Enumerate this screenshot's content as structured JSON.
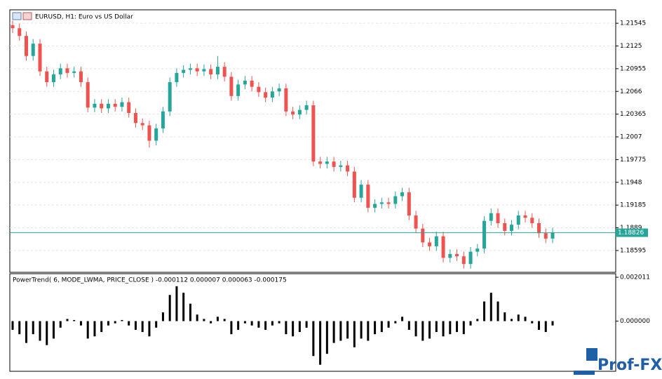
{
  "chart_data": [
    {
      "type": "candlestick",
      "title": "EURUSD, H1:  Euro vs US Dollar",
      "ylim": [
        1.18312,
        1.21719
      ],
      "yticks": [
        1.21545,
        1.2125,
        1.20955,
        1.2066,
        1.20365,
        1.2007,
        1.19775,
        1.1948,
        1.19185,
        1.1889,
        1.18595
      ],
      "grid": true,
      "up_color": "#26a69a",
      "down_color": "#ef5350",
      "price_line": 1.18826,
      "price_line_color": "#26a69a",
      "open": [
        1.2152,
        1.2148,
        1.2138,
        1.2112,
        1.2128,
        1.2092,
        1.2078,
        1.2088,
        1.2096,
        1.209,
        1.2092,
        1.2078,
        1.2045,
        1.205,
        1.2044,
        1.205,
        1.2046,
        1.2052,
        1.2038,
        1.2025,
        1.2022,
        1.2002,
        1.2018,
        1.204,
        1.2078,
        1.209,
        1.2094,
        1.2096,
        1.2092,
        1.2095,
        1.2088,
        1.2098,
        1.2085,
        1.206,
        1.2075,
        1.208,
        1.2072,
        1.2065,
        1.2058,
        1.2066,
        1.207,
        1.204,
        1.2036,
        1.2042,
        1.2048,
        1.1975,
        1.1972,
        1.1975,
        1.1968,
        1.197,
        1.1962,
        1.1928,
        1.1945,
        1.1915,
        1.192,
        1.1922,
        1.192,
        1.193,
        1.1935,
        1.1905,
        1.1888,
        1.187,
        1.1865,
        1.1878,
        1.185,
        1.1855,
        1.1852,
        1.1842,
        1.1858,
        1.1862,
        1.1898,
        1.1908,
        1.1895,
        1.1885,
        1.1893,
        1.1905,
        1.1902,
        1.1895,
        1.1882,
        1.1875
      ],
      "high": [
        1.2158,
        1.2154,
        1.2144,
        1.2134,
        1.2134,
        1.2098,
        1.2094,
        1.2102,
        1.2102,
        1.2098,
        1.2098,
        1.2084,
        1.2056,
        1.2056,
        1.2056,
        1.2056,
        1.2058,
        1.2058,
        1.2044,
        1.2031,
        1.2028,
        1.2024,
        1.2046,
        1.2084,
        1.2096,
        1.21,
        1.2102,
        1.2102,
        1.2101,
        1.2101,
        1.2112,
        1.2104,
        1.2091,
        1.2081,
        1.2086,
        1.2086,
        1.2078,
        1.2071,
        1.2072,
        1.2076,
        1.2076,
        1.2046,
        1.2048,
        1.2054,
        1.2054,
        1.1981,
        1.1981,
        1.1981,
        1.1976,
        1.1976,
        1.1968,
        1.1951,
        1.1951,
        1.1926,
        1.1928,
        1.1928,
        1.1936,
        1.1941,
        1.1941,
        1.1911,
        1.1894,
        1.1876,
        1.1884,
        1.1884,
        1.1861,
        1.1861,
        1.1858,
        1.1864,
        1.1868,
        1.1904,
        1.1914,
        1.1914,
        1.1901,
        1.1899,
        1.1911,
        1.1911,
        1.1908,
        1.1901,
        1.1888,
        1.1889
      ],
      "low": [
        1.2142,
        1.2132,
        1.2106,
        1.2106,
        1.2086,
        1.2072,
        1.2072,
        1.2082,
        1.2084,
        1.2084,
        1.2072,
        1.2039,
        1.2039,
        1.2038,
        1.2038,
        1.204,
        1.204,
        1.2032,
        1.2019,
        1.2016,
        1.1993,
        1.1996,
        1.2012,
        1.2034,
        1.2072,
        1.2084,
        1.2088,
        1.2086,
        1.2086,
        1.2082,
        1.2082,
        1.2079,
        1.2054,
        1.2054,
        1.2069,
        1.2066,
        1.2059,
        1.2052,
        1.2052,
        1.206,
        1.2034,
        1.203,
        1.203,
        1.2036,
        1.1969,
        1.1966,
        1.1966,
        1.1962,
        1.1962,
        1.1956,
        1.1922,
        1.1922,
        1.1909,
        1.1909,
        1.1914,
        1.1914,
        1.1914,
        1.1924,
        1.1899,
        1.1882,
        1.1864,
        1.1859,
        1.1859,
        1.1844,
        1.1844,
        1.1846,
        1.1836,
        1.1836,
        1.1852,
        1.1856,
        1.1892,
        1.1889,
        1.1879,
        1.1879,
        1.1887,
        1.1896,
        1.1889,
        1.1876,
        1.1869,
        1.1869
      ],
      "close": [
        1.2148,
        1.2138,
        1.2112,
        1.2128,
        1.2092,
        1.2078,
        1.2088,
        1.2096,
        1.209,
        1.2092,
        1.2078,
        1.2045,
        1.205,
        1.2044,
        1.205,
        1.2046,
        1.2052,
        1.2038,
        1.2025,
        1.2022,
        1.2002,
        1.2018,
        1.204,
        1.2078,
        1.209,
        1.2094,
        1.2096,
        1.2092,
        1.2095,
        1.2088,
        1.2098,
        1.2085,
        1.206,
        1.2075,
        1.208,
        1.2072,
        1.2065,
        1.2058,
        1.2066,
        1.207,
        1.204,
        1.2036,
        1.2042,
        1.2048,
        1.1975,
        1.1972,
        1.1975,
        1.1968,
        1.197,
        1.1962,
        1.1928,
        1.1945,
        1.1915,
        1.192,
        1.1922,
        1.192,
        1.193,
        1.1935,
        1.1905,
        1.1888,
        1.187,
        1.1865,
        1.1878,
        1.185,
        1.1855,
        1.1852,
        1.1842,
        1.1858,
        1.1862,
        1.1898,
        1.1908,
        1.1895,
        1.1885,
        1.1893,
        1.1905,
        1.1902,
        1.1895,
        1.1882,
        1.1875,
        1.1883
      ]
    },
    {
      "type": "histogram_bars",
      "title": "PowerTrend( 6, MODE_LWMA, PRICE_CLOSE ) -0.000112 0.000007 0.000063 -0.000175",
      "ylim": [
        -0.0023,
        0.002173
      ],
      "yticks": [
        0.002011,
        {
          "value": 0,
          "label": "0.000000"
        }
      ],
      "color": "#000000",
      "values": [
        -0.0004,
        -0.0006,
        -0.001,
        -0.0006,
        -0.0009,
        -0.0011,
        -0.0008,
        -0.0003,
        0.0001,
        5e-05,
        -0.0002,
        -0.0008,
        -0.0007,
        -0.0005,
        -0.0002,
        -0.0001,
        5e-05,
        -0.0002,
        -0.0004,
        -0.0005,
        -0.0007,
        -0.0003,
        0.0004,
        0.0012,
        0.0016,
        0.0013,
        0.0008,
        0.0003,
        0.0001,
        -0.0001,
        0.0002,
        0.0001,
        -0.0006,
        -0.0004,
        -0.0001,
        -0.0002,
        -0.0003,
        -0.0004,
        -0.0002,
        -0.0001,
        -0.0006,
        -0.0007,
        -0.0005,
        -0.0003,
        -0.0016,
        -0.002,
        -0.0015,
        -0.001,
        -0.0009,
        -0.0008,
        -0.0012,
        -0.0008,
        -0.0009,
        -0.0006,
        -0.0005,
        -0.0003,
        -0.0001,
        0.0002,
        -0.0004,
        -0.0007,
        -0.0009,
        -0.0008,
        -0.0005,
        -0.0007,
        -0.0006,
        -0.0005,
        -0.0006,
        -0.0002,
        0.0001,
        0.0009,
        0.0013,
        0.0009,
        0.0004,
        0.0001,
        0.0003,
        0.0002,
        -0.0001,
        -0.0004,
        -0.0005,
        -0.0002
      ]
    }
  ],
  "watermark": "Prof-FX"
}
